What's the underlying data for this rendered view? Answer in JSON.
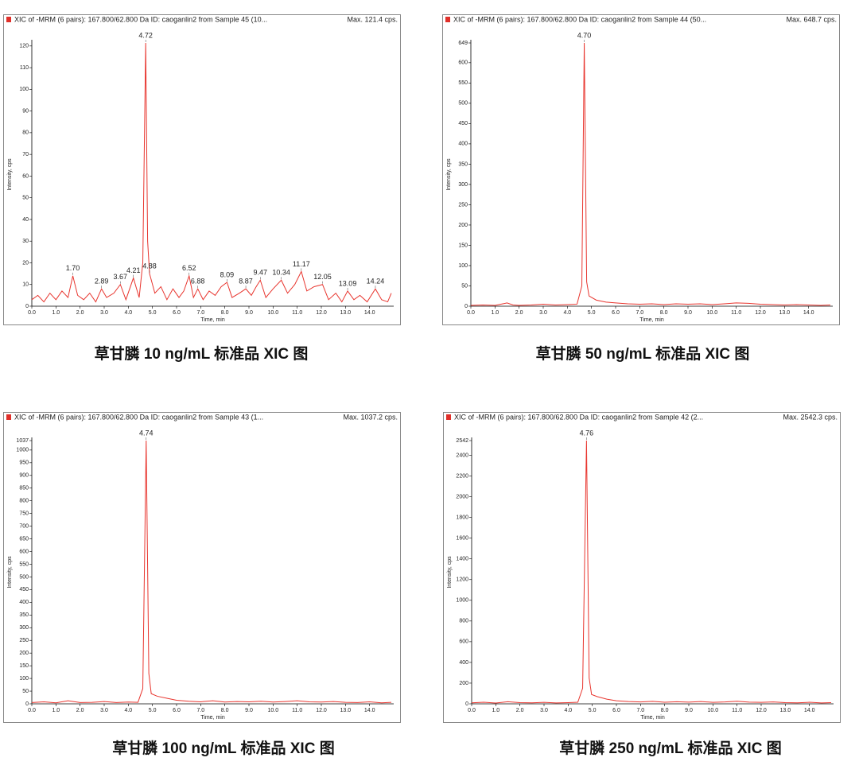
{
  "chart_data": [
    {
      "type": "line",
      "title": "XIC of -MRM (6 pairs): 167.800/62.800 Da ID: caoganlin2 from Sample 45 (10...",
      "max_label": "Max. 121.4 cps.",
      "ylabel": "Intensity, cps",
      "xlabel": "Time, min",
      "caption": "草甘膦 10 ng/mL 标准品 XIC 图",
      "color": "#e8352e",
      "xlim": [
        0,
        15
      ],
      "ylim": [
        0,
        121.4
      ],
      "xticks": [
        {
          "value": 0,
          "label": "0.0"
        },
        {
          "value": 1,
          "label": "1.0"
        },
        {
          "value": 2,
          "label": "2.0"
        },
        {
          "value": 3,
          "label": "3.0"
        },
        {
          "value": 4,
          "label": "4.0"
        },
        {
          "value": 5,
          "label": "5.0"
        },
        {
          "value": 6,
          "label": "6.0"
        },
        {
          "value": 7,
          "label": "7.0"
        },
        {
          "value": 8,
          "label": "8.0"
        },
        {
          "value": 9,
          "label": "9.0"
        },
        {
          "value": 10,
          "label": "10.0"
        },
        {
          "value": 11,
          "label": "11.0"
        },
        {
          "value": 12,
          "label": "12.0"
        },
        {
          "value": 13,
          "label": "13.0"
        },
        {
          "value": 14,
          "label": "14.0"
        }
      ],
      "yticks": [
        0,
        10,
        20,
        30,
        40,
        50,
        60,
        70,
        80,
        90,
        100,
        110,
        120
      ],
      "x": [
        0,
        0.25,
        0.5,
        0.75,
        1.0,
        1.25,
        1.5,
        1.7,
        1.9,
        2.15,
        2.4,
        2.65,
        2.89,
        3.1,
        3.4,
        3.67,
        3.9,
        4.21,
        4.45,
        4.6,
        4.72,
        4.8,
        4.88,
        5.1,
        5.35,
        5.6,
        5.85,
        6.1,
        6.3,
        6.52,
        6.7,
        6.88,
        7.1,
        7.35,
        7.6,
        7.85,
        8.09,
        8.3,
        8.6,
        8.87,
        9.1,
        9.3,
        9.47,
        9.7,
        10.0,
        10.34,
        10.6,
        10.9,
        11.17,
        11.4,
        11.7,
        12.05,
        12.3,
        12.6,
        12.85,
        13.09,
        13.35,
        13.6,
        13.9,
        14.24,
        14.5,
        14.75,
        14.9
      ],
      "values": [
        3,
        5,
        2,
        6,
        3,
        7,
        4,
        14,
        5,
        3,
        6,
        2,
        8,
        4,
        6,
        10,
        3,
        13,
        4,
        20,
        121.4,
        30,
        15,
        6,
        9,
        3,
        8,
        4,
        7,
        14,
        4,
        8,
        3,
        7,
        5,
        9,
        11,
        4,
        6,
        8,
        5,
        9,
        12,
        4,
        8,
        12,
        6,
        10,
        16,
        7,
        9,
        10,
        3,
        6,
        2,
        7,
        3,
        5,
        2,
        8,
        3,
        2,
        6
      ],
      "annotations": [
        {
          "x": 1.7,
          "y": 14,
          "label": "1.70"
        },
        {
          "x": 2.89,
          "y": 8,
          "label": "2.89"
        },
        {
          "x": 3.67,
          "y": 10,
          "label": "3.67"
        },
        {
          "x": 4.21,
          "y": 13,
          "label": "4.21"
        },
        {
          "x": 4.72,
          "y": 121.4,
          "label": "4.72"
        },
        {
          "x": 4.88,
          "y": 15,
          "label": "4.88"
        },
        {
          "x": 6.52,
          "y": 14,
          "label": "6.52"
        },
        {
          "x": 6.88,
          "y": 8,
          "label": "6.88"
        },
        {
          "x": 8.09,
          "y": 11,
          "label": "8.09"
        },
        {
          "x": 8.87,
          "y": 8,
          "label": "8.87"
        },
        {
          "x": 9.47,
          "y": 12,
          "label": "9.47"
        },
        {
          "x": 10.34,
          "y": 12,
          "label": "10.34"
        },
        {
          "x": 11.17,
          "y": 16,
          "label": "11.17"
        },
        {
          "x": 12.05,
          "y": 10,
          "label": "12.05"
        },
        {
          "x": 13.09,
          "y": 7,
          "label": "13.09"
        },
        {
          "x": 14.24,
          "y": 8,
          "label": "14.24"
        }
      ]
    },
    {
      "type": "line",
      "title": "XIC of -MRM (6 pairs): 167.800/62.800 Da ID: caoganlin2 from Sample 44 (50...",
      "max_label": "Max. 648.7 cps.",
      "ylabel": "Intensity, cps",
      "xlabel": "Time, min",
      "caption": "草甘膦 50 ng/mL 标准品 XIC 图",
      "color": "#e8352e",
      "xlim": [
        0,
        15
      ],
      "ylim": [
        0,
        648.7
      ],
      "xticks": [
        {
          "value": 0,
          "label": "0.0"
        },
        {
          "value": 1,
          "label": "1.0"
        },
        {
          "value": 2,
          "label": "2.0"
        },
        {
          "value": 3,
          "label": "3.0"
        },
        {
          "value": 4,
          "label": "4.0"
        },
        {
          "value": 5,
          "label": "5.0"
        },
        {
          "value": 6,
          "label": "6.0"
        },
        {
          "value": 7,
          "label": "7.0"
        },
        {
          "value": 8,
          "label": "8.0"
        },
        {
          "value": 9,
          "label": "9.0"
        },
        {
          "value": 10,
          "label": "10.0"
        },
        {
          "value": 11,
          "label": "11.0"
        },
        {
          "value": 12,
          "label": "12.0"
        },
        {
          "value": 13,
          "label": "13.0"
        },
        {
          "value": 14,
          "label": "14.0"
        }
      ],
      "yticks": [
        0,
        50,
        100,
        150,
        200,
        250,
        300,
        350,
        400,
        450,
        500,
        550,
        600,
        {
          "value": 648.7,
          "label": "649"
        }
      ],
      "x": [
        0,
        0.5,
        1.0,
        1.5,
        1.75,
        2.0,
        2.5,
        3.0,
        3.5,
        4.0,
        4.4,
        4.6,
        4.7,
        4.8,
        4.9,
        5.2,
        5.6,
        6.0,
        6.5,
        7.0,
        7.5,
        8.0,
        8.5,
        9.0,
        9.5,
        10.0,
        10.5,
        11.0,
        11.5,
        12.0,
        12.5,
        13.0,
        13.5,
        14.0,
        14.5,
        14.9
      ],
      "values": [
        2,
        3,
        2,
        8,
        3,
        2,
        3,
        5,
        3,
        4,
        5,
        50,
        648.7,
        60,
        25,
        15,
        10,
        8,
        6,
        5,
        6,
        4,
        6,
        5,
        6,
        4,
        6,
        8,
        7,
        5,
        4,
        3,
        4,
        3,
        2,
        3
      ],
      "annotations": [
        {
          "x": 4.7,
          "y": 648.7,
          "label": "4.70"
        }
      ]
    },
    {
      "type": "line",
      "title": "XIC of -MRM (6 pairs): 167.800/62.800 Da ID: caoganlin2 from Sample 43 (1...",
      "max_label": "Max. 1037.2 cps.",
      "ylabel": "Intensity, cps",
      "xlabel": "Time, min",
      "caption": "草甘膦 100 ng/mL 标准品 XIC 图",
      "color": "#e8352e",
      "xlim": [
        0,
        15
      ],
      "ylim": [
        0,
        1037.2
      ],
      "xticks": [
        {
          "value": 0,
          "label": "0.0"
        },
        {
          "value": 1,
          "label": "1.0"
        },
        {
          "value": 2,
          "label": "2.0"
        },
        {
          "value": 3,
          "label": "3.0"
        },
        {
          "value": 4,
          "label": "4.0"
        },
        {
          "value": 5,
          "label": "5.0"
        },
        {
          "value": 6,
          "label": "6.0"
        },
        {
          "value": 7,
          "label": "7.0"
        },
        {
          "value": 8,
          "label": "8.0"
        },
        {
          "value": 9,
          "label": "9.0"
        },
        {
          "value": 10,
          "label": "10.0"
        },
        {
          "value": 11,
          "label": "11.0"
        },
        {
          "value": 12,
          "label": "12.0"
        },
        {
          "value": 13,
          "label": "13.0"
        },
        {
          "value": 14,
          "label": "14.0"
        }
      ],
      "yticks": [
        0,
        50,
        100,
        150,
        200,
        250,
        300,
        350,
        400,
        450,
        500,
        550,
        600,
        650,
        700,
        750,
        800,
        850,
        900,
        950,
        1000,
        {
          "value": 1037.2,
          "label": "1037"
        }
      ],
      "x": [
        0,
        0.5,
        1.0,
        1.5,
        2.0,
        2.5,
        3.0,
        3.5,
        4.0,
        4.4,
        4.6,
        4.74,
        4.85,
        4.95,
        5.2,
        5.6,
        6.0,
        6.5,
        7.0,
        7.5,
        8.0,
        8.5,
        9.0,
        9.5,
        10.0,
        10.5,
        11.0,
        11.5,
        12.0,
        12.5,
        13.0,
        13.5,
        14.0,
        14.5,
        14.9
      ],
      "values": [
        5,
        8,
        4,
        12,
        5,
        6,
        9,
        5,
        7,
        6,
        60,
        1037.2,
        120,
        40,
        30,
        22,
        14,
        10,
        8,
        12,
        7,
        9,
        8,
        10,
        7,
        9,
        12,
        8,
        7,
        9,
        6,
        5,
        8,
        4,
        6
      ],
      "annotations": [
        {
          "x": 4.74,
          "y": 1037.2,
          "label": "4.74"
        }
      ]
    },
    {
      "type": "line",
      "title": "XIC of -MRM (6 pairs): 167.800/62.800 Da ID: caoganlin2 from Sample 42 (2...",
      "max_label": "Max. 2542.3 cps.",
      "ylabel": "Intensity, cps",
      "xlabel": "Time, min",
      "caption": "草甘膦 250 ng/mL 标准品 XIC 图",
      "color": "#e8352e",
      "xlim": [
        0,
        15
      ],
      "ylim": [
        0,
        2542.3
      ],
      "xticks": [
        {
          "value": 0,
          "label": "0.0"
        },
        {
          "value": 1,
          "label": "1.0"
        },
        {
          "value": 2,
          "label": "2.0"
        },
        {
          "value": 3,
          "label": "3.0"
        },
        {
          "value": 4,
          "label": "4.0"
        },
        {
          "value": 5,
          "label": "5.0"
        },
        {
          "value": 6,
          "label": "6.0"
        },
        {
          "value": 7,
          "label": "7.0"
        },
        {
          "value": 8,
          "label": "8.0"
        },
        {
          "value": 9,
          "label": "9.0"
        },
        {
          "value": 10,
          "label": "10.0"
        },
        {
          "value": 11,
          "label": "11.0"
        },
        {
          "value": 12,
          "label": "12.0"
        },
        {
          "value": 13,
          "label": "13.0"
        },
        {
          "value": 14,
          "label": "14.0"
        }
      ],
      "yticks": [
        0,
        200,
        400,
        600,
        800,
        1000,
        1200,
        1400,
        1600,
        1800,
        2000,
        2200,
        2400,
        {
          "value": 2542.3,
          "label": "2542"
        }
      ],
      "x": [
        0,
        0.5,
        1.0,
        1.5,
        2.0,
        2.5,
        3.0,
        3.5,
        4.0,
        4.4,
        4.6,
        4.76,
        4.87,
        4.97,
        5.2,
        5.6,
        6.0,
        6.5,
        7.0,
        7.5,
        8.0,
        8.5,
        9.0,
        9.5,
        10.0,
        10.5,
        11.0,
        11.5,
        12.0,
        12.5,
        13.0,
        13.5,
        14.0,
        14.5,
        14.9
      ],
      "values": [
        10,
        15,
        8,
        20,
        12,
        10,
        14,
        9,
        12,
        15,
        150,
        2542.3,
        250,
        90,
        70,
        45,
        30,
        22,
        18,
        24,
        15,
        20,
        16,
        22,
        14,
        18,
        25,
        16,
        14,
        18,
        12,
        10,
        15,
        9,
        12
      ],
      "annotations": [
        {
          "x": 4.76,
          "y": 2542.3,
          "label": "4.76"
        }
      ]
    }
  ]
}
